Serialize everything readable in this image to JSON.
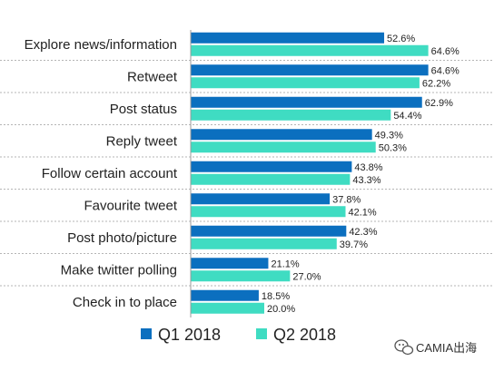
{
  "chart_data": {
    "type": "bar",
    "orientation": "horizontal",
    "categories": [
      "Explore news/information",
      "Retweet",
      "Post status",
      "Reply tweet",
      "Follow certain account",
      "Favourite tweet",
      "Post photo/picture",
      "Make twitter polling",
      "Check in to place"
    ],
    "series": [
      {
        "name": "Q1 2018",
        "color": "#0B6FBF",
        "values": [
          52.6,
          64.6,
          62.9,
          49.3,
          43.8,
          37.8,
          42.3,
          21.1,
          18.5
        ],
        "labels": [
          "52.6%",
          "64.6%",
          "62.9%",
          "49.3%",
          "43.8%",
          "37.8%",
          "42.3%",
          "21.1%",
          "18.5%"
        ]
      },
      {
        "name": "Q2 2018",
        "color": "#3FDCC2",
        "values": [
          64.6,
          62.2,
          54.4,
          50.3,
          43.3,
          42.1,
          39.7,
          27.0,
          20.0
        ],
        "labels": [
          "64.6%",
          "62.2%",
          "54.4%",
          "50.3%",
          "43.3%",
          "42.1%",
          "39.7%",
          "27.0%",
          "20.0%"
        ]
      }
    ],
    "xlim": [
      0,
      100
    ],
    "grid": false,
    "legend": "bottom"
  },
  "watermark": {
    "text": "CAMIA出海",
    "icon": "wechat-icon"
  }
}
